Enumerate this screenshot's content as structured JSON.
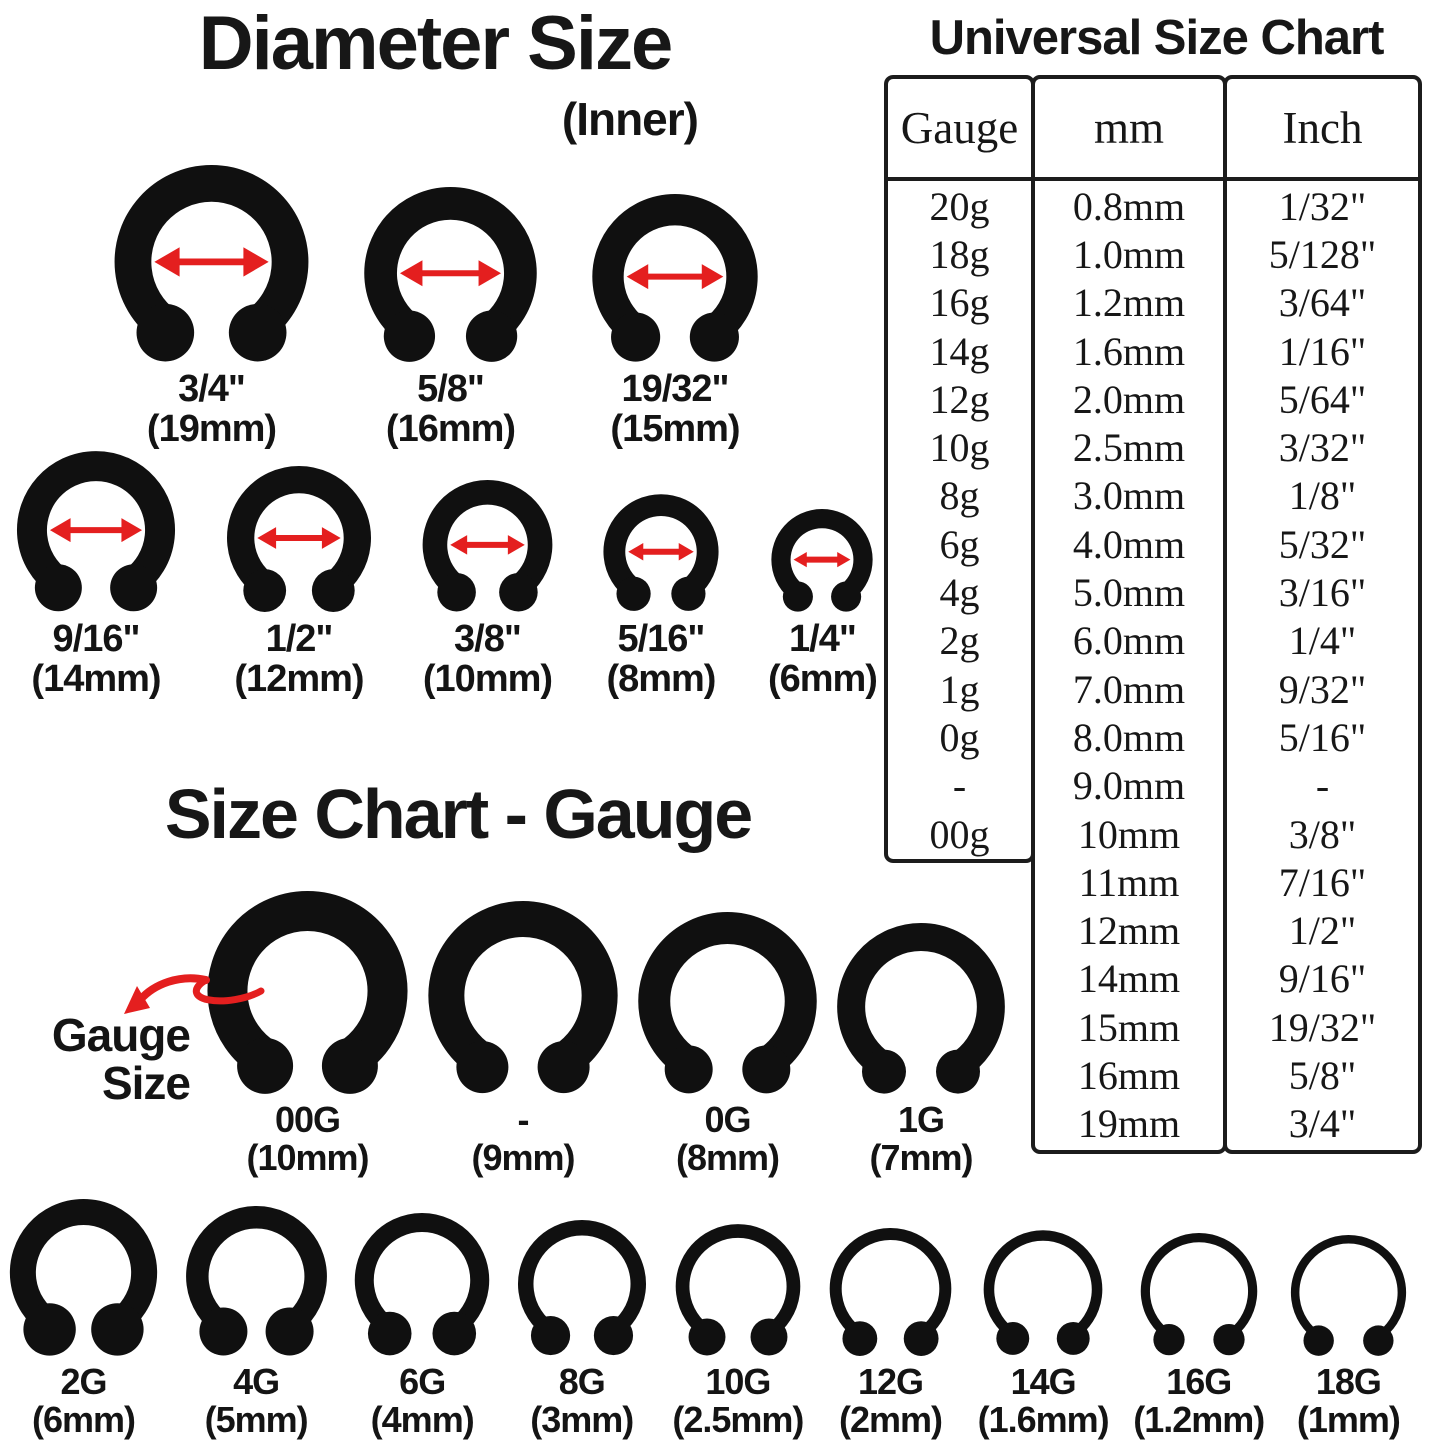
{
  "colors": {
    "black": "#101010",
    "red": "#e41f1f",
    "table_border": "#1c1c1c"
  },
  "diameter_section": {
    "title": "Diameter Size",
    "subtitle": "(Inner)",
    "rows": [
      {
        "items": [
          {
            "label": "3/4\"",
            "sublabel": "(19mm)",
            "mm": 19
          },
          {
            "label": "5/8\"",
            "sublabel": "(16mm)",
            "mm": 16
          },
          {
            "label": "19/32\"",
            "sublabel": "(15mm)",
            "mm": 15
          }
        ]
      },
      {
        "items": [
          {
            "label": "9/16\"",
            "sublabel": "(14mm)",
            "mm": 14
          },
          {
            "label": "1/2\"",
            "sublabel": "(12mm)",
            "mm": 12
          },
          {
            "label": "3/8\"",
            "sublabel": "(10mm)",
            "mm": 10
          },
          {
            "label": "5/16\"",
            "sublabel": "(8mm)",
            "mm": 8
          },
          {
            "label": "1/4\"",
            "sublabel": "(6mm)",
            "mm": 6
          }
        ]
      }
    ]
  },
  "universal_chart": {
    "title": "Universal Size Chart",
    "columns": [
      "Gauge",
      "mm",
      "Inch"
    ],
    "gauge_rows": 14,
    "rows": [
      [
        "20g",
        "0.8mm",
        "1/32\""
      ],
      [
        "18g",
        "1.0mm",
        "5/128\""
      ],
      [
        "16g",
        "1.2mm",
        "3/64\""
      ],
      [
        "14g",
        "1.6mm",
        "1/16\""
      ],
      [
        "12g",
        "2.0mm",
        "5/64\""
      ],
      [
        "10g",
        "2.5mm",
        "3/32\""
      ],
      [
        "8g",
        "3.0mm",
        "1/8\""
      ],
      [
        "6g",
        "4.0mm",
        "5/32\""
      ],
      [
        "4g",
        "5.0mm",
        "3/16\""
      ],
      [
        "2g",
        "6.0mm",
        "1/4\""
      ],
      [
        "1g",
        "7.0mm",
        "9/32\""
      ],
      [
        "0g",
        "8.0mm",
        "5/16\""
      ],
      [
        "-",
        "9.0mm",
        "-"
      ],
      [
        "00g",
        "10mm",
        "3/8\""
      ],
      [
        "",
        "11mm",
        "7/16\""
      ],
      [
        "",
        "12mm",
        "1/2\""
      ],
      [
        "",
        "14mm",
        "9/16\""
      ],
      [
        "",
        "15mm",
        "19/32\""
      ],
      [
        "",
        "16mm",
        "5/8\""
      ],
      [
        "",
        "19mm",
        "3/4\""
      ]
    ]
  },
  "gauge_section": {
    "title": "Size Chart - Gauge",
    "pointer_label_line1": "Gauge",
    "pointer_label_line2": "Size",
    "items": [
      {
        "label": "00G",
        "sublabel": "(10mm)",
        "mm": 10
      },
      {
        "label": "-",
        "sublabel": "(9mm)",
        "mm": 9
      },
      {
        "label": "0G",
        "sublabel": "(8mm)",
        "mm": 8
      },
      {
        "label": "1G",
        "sublabel": "(7mm)",
        "mm": 7
      }
    ]
  },
  "bottom_row": {
    "items": [
      {
        "label": "2G",
        "sublabel": "(6mm)",
        "mm": 6
      },
      {
        "label": "4G",
        "sublabel": "(5mm)",
        "mm": 5
      },
      {
        "label": "6G",
        "sublabel": "(4mm)",
        "mm": 4
      },
      {
        "label": "8G",
        "sublabel": "(3mm)",
        "mm": 3
      },
      {
        "label": "10G",
        "sublabel": "(2.5mm)",
        "mm": 2.5
      },
      {
        "label": "12G",
        "sublabel": "(2mm)",
        "mm": 2
      },
      {
        "label": "14G",
        "sublabel": "(1.6mm)",
        "mm": 1.6
      },
      {
        "label": "16G",
        "sublabel": "(1.2mm)",
        "mm": 1.2
      },
      {
        "label": "18G",
        "sublabel": "(1mm)",
        "mm": 1
      }
    ]
  }
}
